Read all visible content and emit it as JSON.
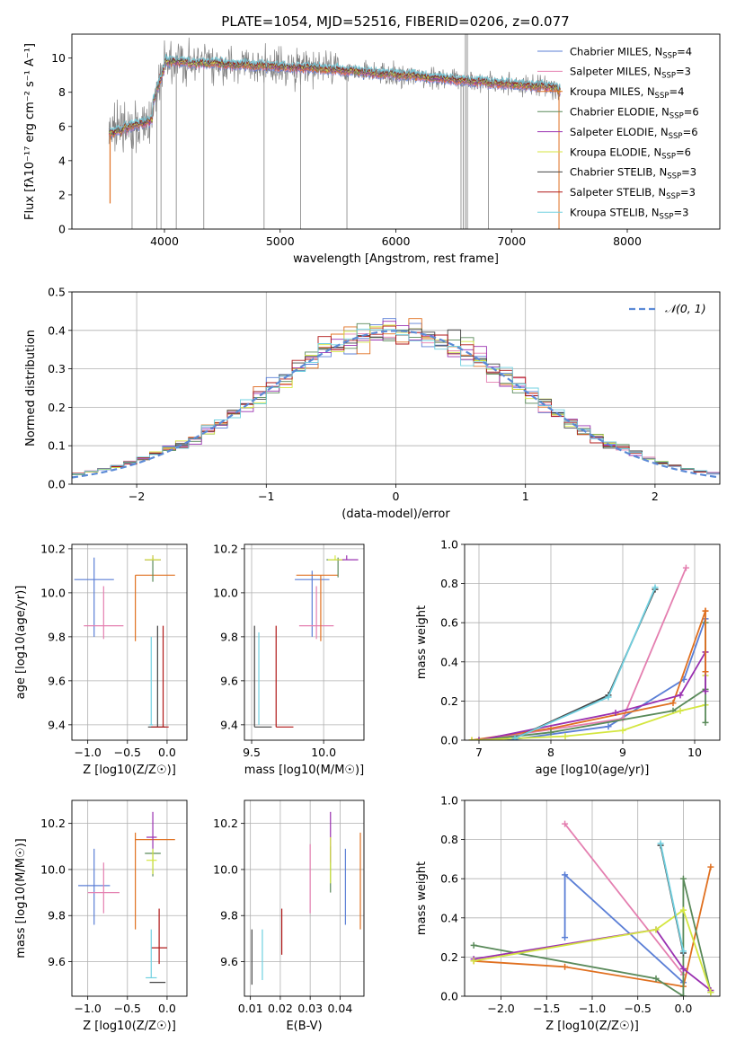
{
  "figure_title": "PLATE=1054, MJD=52516, FIBERID=0206, z=0.077",
  "chart_data": [
    {
      "id": "spectrum",
      "type": "line",
      "title": "PLATE=1054, MJD=52516, FIBERID=0206, z=0.077",
      "xlabel": "wavelength [Angstrom, rest frame]",
      "ylabel": "Flux [fλ10⁻¹⁷ erg cm⁻² s⁻¹ A⁻¹]",
      "xlim": [
        3200,
        8800
      ],
      "ylim": [
        0,
        11.4
      ],
      "xticks": [
        4000,
        5000,
        6000,
        7000,
        8000
      ],
      "yticks": [
        0,
        2,
        4,
        6,
        8,
        10
      ],
      "legend": "right",
      "series": [
        {
          "name": "Chabrier MILES, N_SSP=4",
          "color": "#5b7fd6"
        },
        {
          "name": "Salpeter MILES, N_SSP=3",
          "color": "#e47fb0"
        },
        {
          "name": "Kroupa MILES, N_SSP=4",
          "color": "#e07020"
        },
        {
          "name": "Chabrier ELODIE, N_SSP=6",
          "color": "#5a8a5a"
        },
        {
          "name": "Salpeter ELODIE, N_SSP=6",
          "color": "#9a30b0"
        },
        {
          "name": "Kroupa ELODIE, N_SSP=6",
          "color": "#d4e640"
        },
        {
          "name": "Chabrier STELIB, N_SSP=3",
          "color": "#444444"
        },
        {
          "name": "Salpeter STELIB, N_SSP=3",
          "color": "#b01818"
        },
        {
          "name": "Kroupa STELIB, N_SSP=3",
          "color": "#70d0e0"
        }
      ],
      "data_color": "#808080"
    },
    {
      "id": "residuals",
      "type": "line",
      "xlabel": "(data-model)/error",
      "ylabel": "Normed distribution",
      "xlim": [
        -2.5,
        2.5
      ],
      "ylim": [
        0,
        0.5
      ],
      "xticks": [
        -2,
        -1,
        0,
        1,
        2
      ],
      "yticks": [
        0.0,
        0.1,
        0.2,
        0.3,
        0.4,
        0.5
      ],
      "grid": true,
      "legend": "top-right",
      "legend_label": "𝒩(0, 1)",
      "gaussian": {
        "mean": 0,
        "sigma": 1,
        "color": "#5b8ad6"
      },
      "hist_bins": [
        -2.5,
        2.5,
        0.1
      ]
    },
    {
      "id": "age-vs-z",
      "type": "scatter",
      "xlabel": "Z [log10(Z/Z☉)]",
      "ylabel": "age  [log10(age/yr)]",
      "xlim": [
        -1.2,
        0.25
      ],
      "ylim": [
        9.33,
        10.22
      ],
      "xticks": [
        -1.0,
        -0.5,
        0.0
      ],
      "yticks": [
        9.4,
        9.6,
        9.8,
        10.0,
        10.2
      ],
      "grid": true,
      "points": [
        {
          "x": -0.92,
          "y": 10.06,
          "xerr": 0.25,
          "yerr": [
            0.26,
            0.1
          ],
          "color": "#5b7fd6"
        },
        {
          "x": -0.8,
          "y": 9.85,
          "xerr": 0.25,
          "yerr": [
            0.06,
            0.18
          ],
          "color": "#e47fb0"
        },
        {
          "x": -0.4,
          "y": 10.08,
          "xerr": [
            0.0,
            0.5
          ],
          "yerr": [
            0.3,
            0.0
          ],
          "color": "#e07020"
        },
        {
          "x": -0.18,
          "y": 10.15,
          "xerr": [
            0.1,
            0.1
          ],
          "yerr": [
            0.1,
            0.01
          ],
          "color": "#5a8a5a"
        },
        {
          "x": -0.18,
          "y": 10.15,
          "xerr": [
            0.1,
            0.1
          ],
          "yerr": [
            0.0,
            0.02
          ],
          "color": "#9a30b0"
        },
        {
          "x": -0.18,
          "y": 10.15,
          "xerr": [
            0.1,
            0.1
          ],
          "yerr": [
            0.0,
            0.02
          ],
          "color": "#d4e640"
        },
        {
          "x": -0.12,
          "y": 9.39,
          "xerr": [
            0.12,
            0.1
          ],
          "yerr": [
            0.0,
            0.46
          ],
          "color": "#444444"
        },
        {
          "x": -0.05,
          "y": 9.39,
          "xerr": [
            0.15,
            0.07
          ],
          "yerr": [
            0.0,
            0.46
          ],
          "color": "#b01818"
        },
        {
          "x": -0.2,
          "y": 9.4,
          "xerr": [
            0.02,
            0.02
          ],
          "yerr": [
            0.0,
            0.4
          ],
          "color": "#70d0e0"
        }
      ]
    },
    {
      "id": "age-vs-mass",
      "type": "scatter",
      "xlabel": "mass [log10(M/M☉)]",
      "xlim": [
        9.45,
        10.28
      ],
      "ylim": [
        9.33,
        10.22
      ],
      "xticks": [
        9.5,
        10.0
      ],
      "yticks": [
        9.4,
        9.6,
        9.8,
        10.0,
        10.2
      ],
      "grid": true,
      "points": [
        {
          "x": 9.92,
          "y": 10.06,
          "xerr": [
            0.12,
            0.12
          ],
          "yerr": [
            0.26,
            0.04
          ],
          "color": "#5b7fd6"
        },
        {
          "x": 9.95,
          "y": 9.85,
          "xerr": [
            0.12,
            0.12
          ],
          "yerr": [
            0.06,
            0.18
          ],
          "color": "#e47fb0"
        },
        {
          "x": 9.98,
          "y": 10.08,
          "xerr": [
            0.17,
            0.12
          ],
          "yerr": [
            0.3,
            0.0
          ],
          "color": "#e07020"
        },
        {
          "x": 10.1,
          "y": 10.15,
          "xerr": [
            0.08,
            0.04
          ],
          "yerr": [
            0.08,
            0.01
          ],
          "color": "#5a8a5a"
        },
        {
          "x": 10.16,
          "y": 10.15,
          "xerr": [
            0.06,
            0.08
          ],
          "yerr": [
            0.0,
            0.02
          ],
          "color": "#9a30b0"
        },
        {
          "x": 10.08,
          "y": 10.15,
          "xerr": [
            0.05,
            0.05
          ],
          "yerr": [
            0.0,
            0.02
          ],
          "color": "#d4e640"
        },
        {
          "x": 9.52,
          "y": 9.39,
          "xerr": [
            0.0,
            0.12
          ],
          "yerr": [
            0.0,
            0.46
          ],
          "color": "#444444"
        },
        {
          "x": 9.67,
          "y": 9.39,
          "xerr": [
            0.0,
            0.12
          ],
          "yerr": [
            0.0,
            0.46
          ],
          "color": "#b01818"
        },
        {
          "x": 9.55,
          "y": 9.4,
          "xerr": [
            0.0,
            0.0
          ],
          "yerr": [
            0.0,
            0.42
          ],
          "color": "#70d0e0"
        }
      ]
    },
    {
      "id": "mass-weight-vs-age",
      "type": "line",
      "xlabel": "age  [log10(age/yr)]",
      "ylabel": "mass weight",
      "xlim": [
        6.8,
        10.35
      ],
      "ylim": [
        0,
        1.0
      ],
      "xticks": [
        7,
        8,
        9,
        10
      ],
      "yticks": [
        0.0,
        0.2,
        0.4,
        0.6,
        0.8,
        1.0
      ],
      "grid": true,
      "series": [
        {
          "color": "#5b7fd6",
          "x": [
            7.4,
            8.8,
            9.85,
            10.15
          ],
          "y": [
            0.0,
            0.07,
            0.31,
            0.62
          ]
        },
        {
          "color": "#e47fb0",
          "x": [
            7.0,
            9.0,
            9.88
          ],
          "y": [
            0.0,
            0.11,
            0.88
          ]
        },
        {
          "color": "#e07020",
          "x": [
            6.9,
            8.0,
            9.7,
            10.15
          ],
          "y": [
            0.0,
            0.06,
            0.19,
            0.66
          ]
        },
        {
          "color": "#5a8a5a",
          "x": [
            7.0,
            8.0,
            9.7,
            10.15
          ],
          "y": [
            0.0,
            0.04,
            0.15,
            0.26
          ]
        },
        {
          "color": "#9a30b0",
          "x": [
            7.0,
            8.9,
            9.8,
            10.15
          ],
          "y": [
            0.0,
            0.14,
            0.23,
            0.45
          ]
        },
        {
          "color": "#d4e640",
          "x": [
            6.9,
            8.2,
            9.0,
            9.8,
            10.15
          ],
          "y": [
            0.0,
            0.02,
            0.05,
            0.15,
            0.18
          ]
        },
        {
          "color": "#444444",
          "x": [
            7.5,
            8.8,
            9.45
          ],
          "y": [
            0.01,
            0.23,
            0.77
          ]
        },
        {
          "color": "#70d0e0",
          "x": [
            7.5,
            8.8,
            9.45
          ],
          "y": [
            0.01,
            0.22,
            0.78
          ]
        },
        {
          "color": "#5a8a5a",
          "x": [
            10.15,
            10.15
          ],
          "y": [
            0.09,
            0.6
          ]
        },
        {
          "color": "#d4e640",
          "x": [
            10.15,
            10.15
          ],
          "y": [
            0.33,
            0.45
          ]
        },
        {
          "color": "#9a30b0",
          "x": [
            10.15,
            10.15
          ],
          "y": [
            0.25,
            0.45
          ]
        },
        {
          "color": "#e07020",
          "x": [
            10.15,
            10.15
          ],
          "y": [
            0.35,
            0.66
          ]
        }
      ]
    },
    {
      "id": "mass-vs-z",
      "type": "scatter",
      "xlabel": "Z [log10(Z/Z☉)]",
      "ylabel": "mass [log10(M/M☉)]",
      "xlim": [
        -1.2,
        0.25
      ],
      "ylim": [
        9.45,
        10.3
      ],
      "xticks": [
        -1.0,
        -0.5,
        0.0
      ],
      "yticks": [
        9.6,
        9.8,
        10.0,
        10.2
      ],
      "grid": true,
      "points": [
        {
          "x": -0.92,
          "y": 9.93,
          "xerr": [
            0.2,
            0.2
          ],
          "yerr": [
            0.17,
            0.16
          ],
          "color": "#5b7fd6"
        },
        {
          "x": -0.8,
          "y": 9.9,
          "xerr": [
            0.2,
            0.2
          ],
          "yerr": [
            0.09,
            0.13
          ],
          "color": "#e47fb0"
        },
        {
          "x": -0.4,
          "y": 10.13,
          "xerr": [
            0.0,
            0.5
          ],
          "yerr": [
            0.39,
            0.03
          ],
          "color": "#e07020"
        },
        {
          "x": -0.18,
          "y": 10.07,
          "xerr": [
            0.1,
            0.1
          ],
          "yerr": [
            0.1,
            0.02
          ],
          "color": "#5a8a5a"
        },
        {
          "x": -0.18,
          "y": 10.14,
          "xerr": [
            0.08,
            0.05
          ],
          "yerr": [
            0.05,
            0.11
          ],
          "color": "#9a30b0"
        },
        {
          "x": -0.18,
          "y": 10.04,
          "xerr": [
            0.08,
            0.05
          ],
          "yerr": [
            0.06,
            0.05
          ],
          "color": "#d4e640"
        },
        {
          "x": -0.12,
          "y": 9.51,
          "xerr": [
            0.1,
            0.1
          ],
          "yerr": [
            0.0,
            0.0
          ],
          "color": "#444444"
        },
        {
          "x": -0.1,
          "y": 9.66,
          "xerr": [
            0.1,
            0.1
          ],
          "yerr": [
            0.07,
            0.17
          ],
          "color": "#b01818"
        },
        {
          "x": -0.2,
          "y": 9.53,
          "xerr": [
            0.07,
            0.07
          ],
          "yerr": [
            0.0,
            0.21
          ],
          "color": "#70d0e0"
        }
      ]
    },
    {
      "id": "mass-vs-ebv",
      "type": "scatter",
      "xlabel": "E(B-V)",
      "xlim": [
        0.008,
        0.048
      ],
      "ylim": [
        9.45,
        10.3
      ],
      "xticks": [
        0.01,
        0.02,
        0.03,
        0.04
      ],
      "yticks": [
        9.6,
        9.8,
        10.0,
        10.2
      ],
      "grid": true,
      "points": [
        {
          "x": 0.0105,
          "y": 9.62,
          "yerr": [
            0.12,
            0.12
          ],
          "color": "#444444"
        },
        {
          "x": 0.014,
          "y": 9.63,
          "yerr": [
            0.11,
            0.11
          ],
          "color": "#70d0e0"
        },
        {
          "x": 0.0205,
          "y": 9.73,
          "yerr": [
            0.1,
            0.1
          ],
          "color": "#b01818"
        },
        {
          "x": 0.03,
          "y": 9.96,
          "yerr": [
            0.15,
            0.15
          ],
          "color": "#e47fb0"
        },
        {
          "x": 0.0368,
          "y": 10.0,
          "yerr": [
            0.1,
            0.1
          ],
          "color": "#5a8a5a"
        },
        {
          "x": 0.0368,
          "y": 10.14,
          "yerr": [
            0.11,
            0.11
          ],
          "color": "#9a30b0"
        },
        {
          "x": 0.0368,
          "y": 10.04,
          "yerr": [
            0.1,
            0.1
          ],
          "color": "#d4e640"
        },
        {
          "x": 0.0418,
          "y": 9.93,
          "yerr": [
            0.17,
            0.16
          ],
          "color": "#5b7fd6"
        },
        {
          "x": 0.0468,
          "y": 9.95,
          "yerr": [
            0.21,
            0.21
          ],
          "color": "#e07020"
        }
      ]
    },
    {
      "id": "mass-weight-vs-z",
      "type": "line",
      "xlabel": "Z [log10(Z/Z☉)]",
      "ylabel": "mass weight",
      "xlim": [
        -2.4,
        0.4
      ],
      "ylim": [
        0,
        1.0
      ],
      "xticks": [
        -2.0,
        -1.5,
        -1.0,
        -0.5,
        0.0
      ],
      "yticks": [
        0.0,
        0.2,
        0.4,
        0.6,
        0.8,
        1.0
      ],
      "grid": true,
      "series": [
        {
          "color": "#5b7fd6",
          "x": [
            -1.3,
            -1.3,
            0.0
          ],
          "y": [
            0.3,
            0.62,
            0.07
          ]
        },
        {
          "color": "#e47fb0",
          "x": [
            -1.3,
            0.0
          ],
          "y": [
            0.88,
            0.11
          ]
        },
        {
          "color": "#e07020",
          "x": [
            -2.3,
            -1.3,
            0.0,
            0.3
          ],
          "y": [
            0.18,
            0.15,
            0.05,
            0.66
          ]
        },
        {
          "color": "#5a8a5a",
          "x": [
            -2.3,
            -0.3,
            0.0,
            0.0,
            0.3
          ],
          "y": [
            0.26,
            0.09,
            0.0,
            0.6,
            0.02
          ]
        },
        {
          "color": "#9a30b0",
          "x": [
            -2.3,
            -0.3,
            0.0,
            0.3
          ],
          "y": [
            0.19,
            0.34,
            0.14,
            0.03
          ]
        },
        {
          "color": "#d4e640",
          "x": [
            -2.3,
            -0.3,
            0.0,
            0.3
          ],
          "y": [
            0.18,
            0.34,
            0.44,
            0.02
          ]
        },
        {
          "color": "#444444",
          "x": [
            -0.25,
            0.0
          ],
          "y": [
            0.77,
            0.22
          ]
        },
        {
          "color": "#70d0e0",
          "x": [
            -0.25,
            0.0
          ],
          "y": [
            0.78,
            0.23
          ]
        }
      ]
    }
  ]
}
